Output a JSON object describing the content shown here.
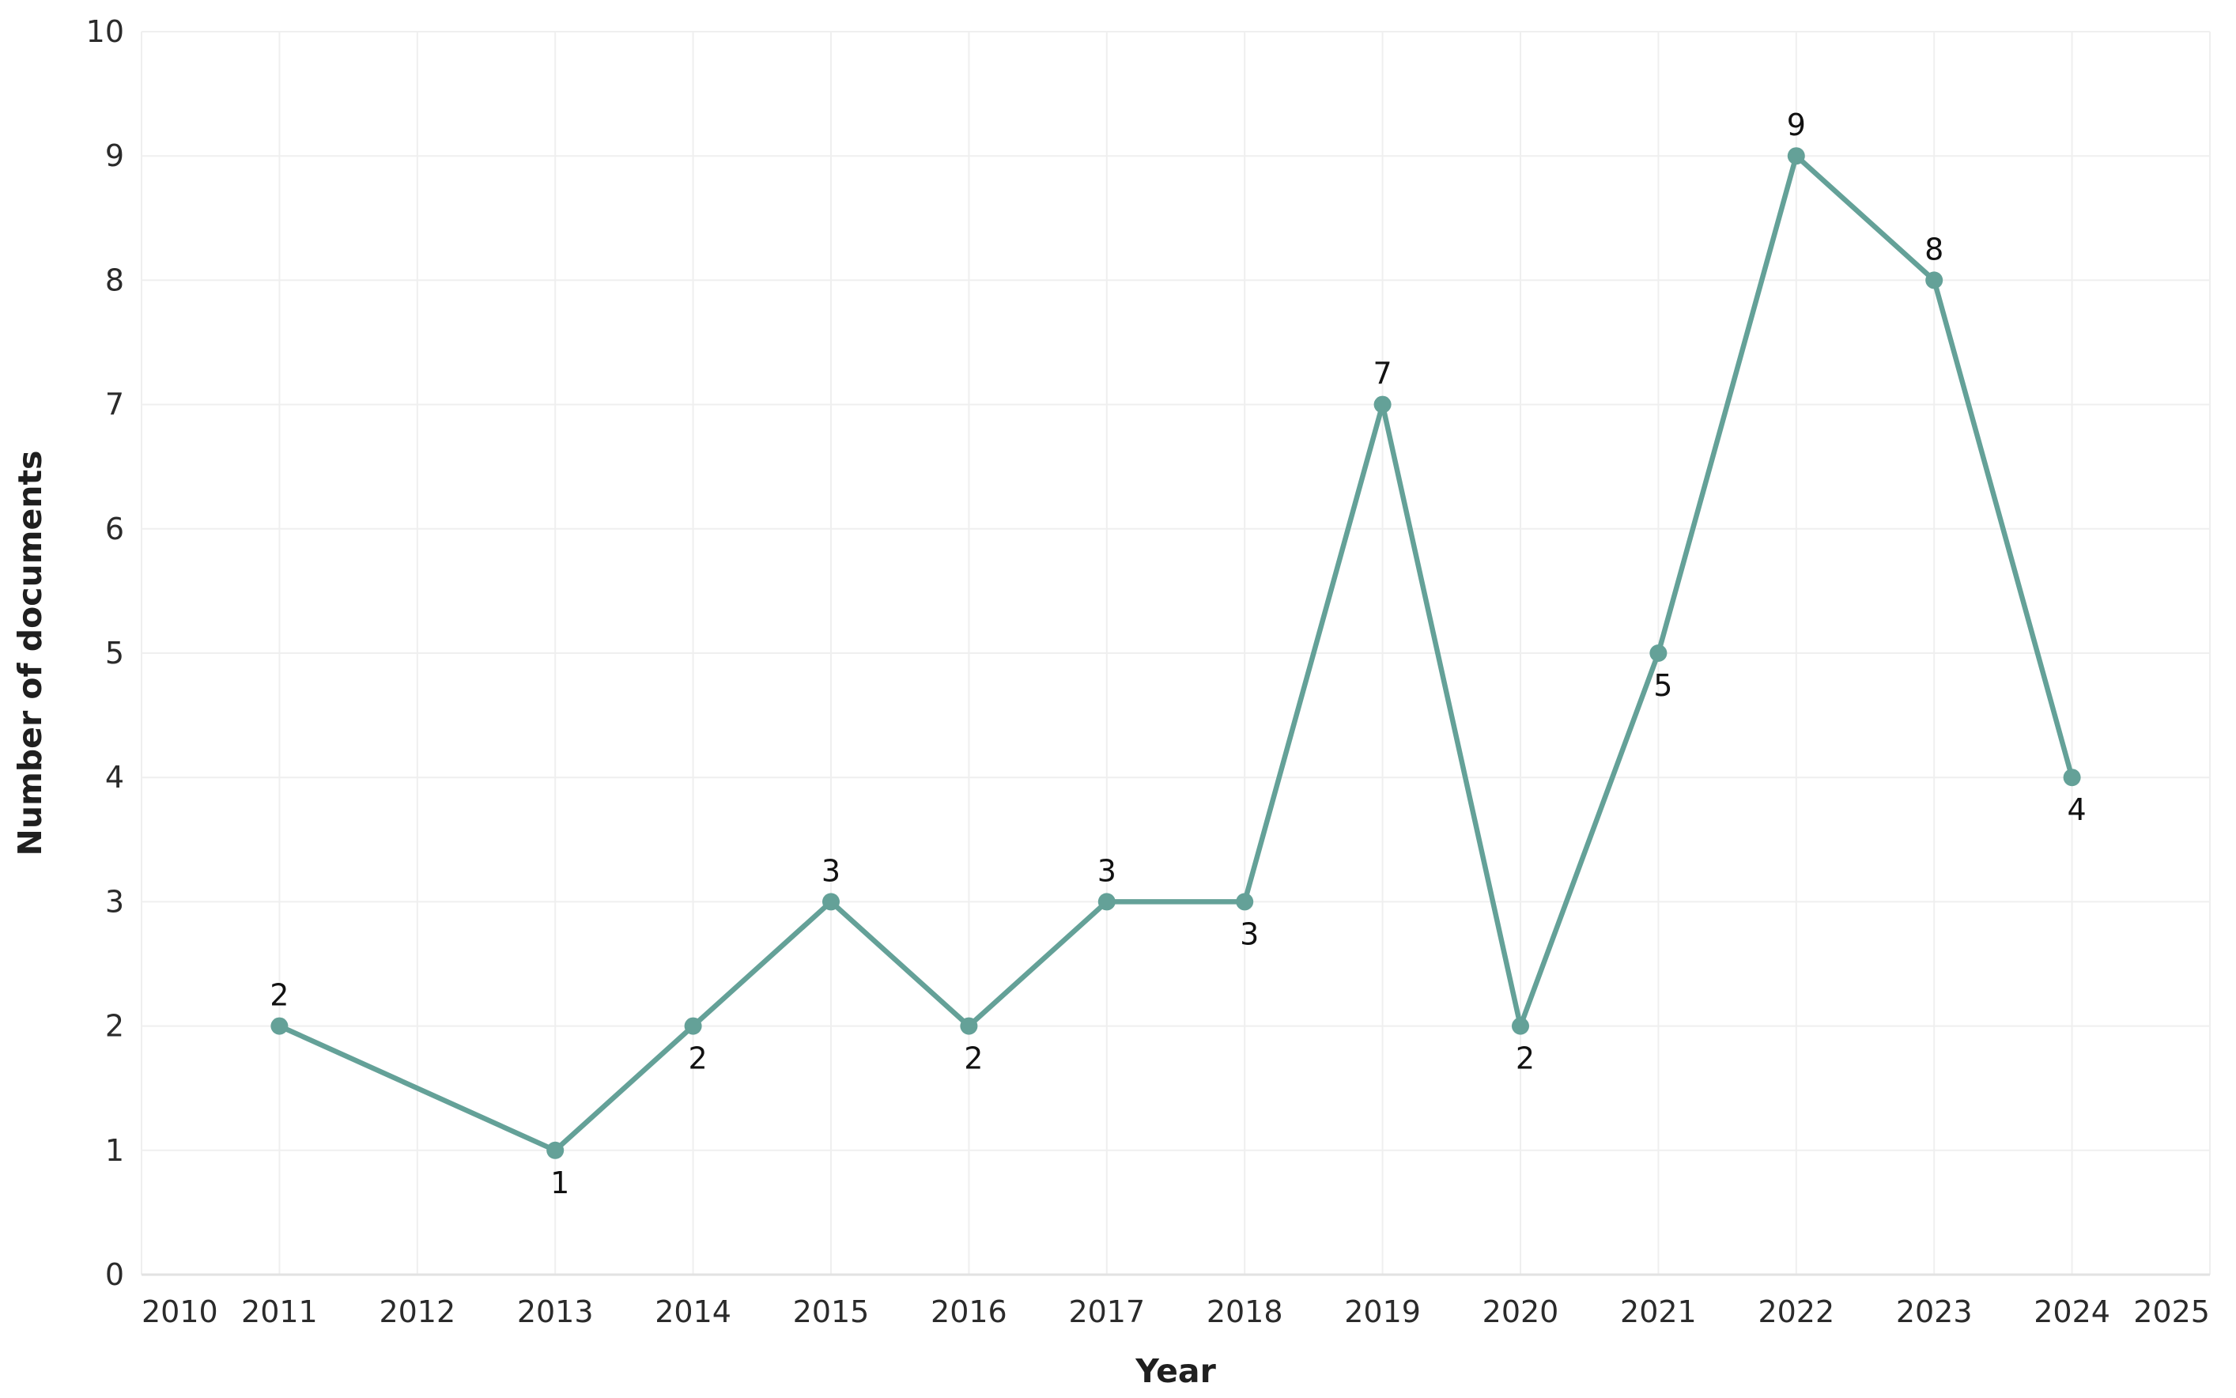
{
  "chart_data": {
    "type": "line",
    "title": "",
    "xlabel": "Year",
    "ylabel": "Number of documents",
    "x": [
      2011,
      2013,
      2014,
      2015,
      2016,
      2017,
      2018,
      2019,
      2020,
      2021,
      2022,
      2023,
      2024
    ],
    "values": [
      2,
      1,
      2,
      3,
      2,
      3,
      3,
      7,
      2,
      5,
      9,
      8,
      4
    ],
    "point_label_positions": [
      "above",
      "below",
      "below",
      "above",
      "below",
      "above",
      "below",
      "above",
      "below",
      "below",
      "above",
      "above",
      "below"
    ],
    "x_ticks": [
      2010,
      2011,
      2012,
      2013,
      2014,
      2015,
      2016,
      2017,
      2018,
      2019,
      2020,
      2021,
      2022,
      2023,
      2024,
      2025
    ],
    "y_ticks": [
      0,
      1,
      2,
      3,
      4,
      5,
      6,
      7,
      8,
      9,
      10
    ],
    "xlim": [
      2010,
      2025
    ],
    "ylim": [
      0,
      10
    ],
    "grid": true,
    "legend_position": "none",
    "line_color": "#64a198",
    "grid_color": "#efefef",
    "baseline_color": "#e2e2e2",
    "tick_text_color": "#2b2b2b",
    "data_label_color": "#111111"
  }
}
